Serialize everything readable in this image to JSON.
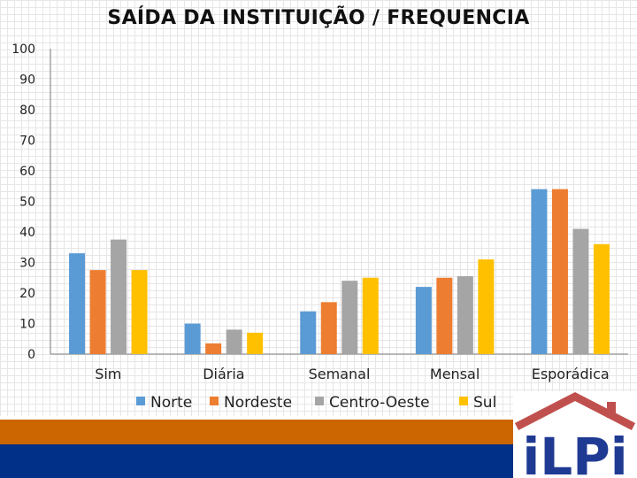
{
  "title": "SAÍDA DA INSTITUIÇÃO / FREQUENCIA",
  "colors": {
    "Norte": "#5b9bd5",
    "Nordeste": "#ed7d31",
    "Centro-Oeste": "#a5a5a5",
    "Sul": "#ffc000",
    "band_orange": "#cc6600",
    "band_navy": "#003087",
    "logo_roof": "#c0504d",
    "logo_text": "#1f3a93"
  },
  "logo": {
    "text": "iLPi"
  },
  "chart_data": {
    "type": "bar",
    "title": "SAÍDA DA INSTITUIÇÃO / FREQUENCIA",
    "categories": [
      "Sim",
      "Diária",
      "Semanal",
      "Mensal",
      "Esporádica"
    ],
    "series": [
      {
        "name": "Norte",
        "values": [
          33,
          10,
          14,
          22,
          54
        ]
      },
      {
        "name": "Nordeste",
        "values": [
          27.5,
          3.5,
          17,
          25,
          54
        ]
      },
      {
        "name": "Centro-Oeste",
        "values": [
          37.5,
          8,
          24,
          25.5,
          41
        ]
      },
      {
        "name": "Sul",
        "values": [
          27.5,
          7,
          25,
          31,
          36
        ]
      }
    ],
    "ylim": [
      0,
      100
    ],
    "yticks": [
      0,
      10,
      20,
      30,
      40,
      50,
      60,
      70,
      80,
      90,
      100
    ],
    "legend": "bottom",
    "grid": false
  }
}
